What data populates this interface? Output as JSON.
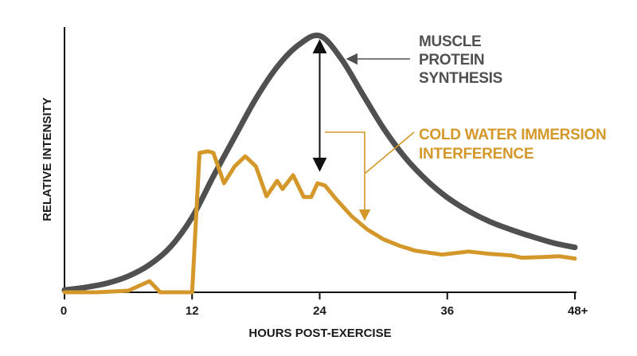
{
  "chart_data": {
    "type": "line",
    "title": "",
    "xlabel": "HOURS POST-EXERCISE",
    "ylabel": "RELATIVE INTENSITY",
    "xlim": [
      0,
      48
    ],
    "ylim": [
      0,
      100
    ],
    "x_ticks": [
      {
        "value": 0,
        "label": "0"
      },
      {
        "value": 12,
        "label": "12"
      },
      {
        "value": 24,
        "label": "24"
      },
      {
        "value": 36,
        "label": "36"
      },
      {
        "value": 48,
        "label": "48+"
      }
    ],
    "grid": false,
    "series": [
      {
        "name": "MUSCLE PROTEIN SYNTHESIS",
        "color": "#505050",
        "points": [
          [
            0,
            0.9
          ],
          [
            2,
            1.9
          ],
          [
            4,
            3.5
          ],
          [
            6,
            6.2
          ],
          [
            8,
            10.6
          ],
          [
            10,
            17.6
          ],
          [
            12,
            28.9
          ],
          [
            14,
            44.7
          ],
          [
            16,
            59.8
          ],
          [
            18,
            74.6
          ],
          [
            20,
            86.8
          ],
          [
            22,
            95.2
          ],
          [
            24,
            98.8
          ],
          [
            26,
            90.1
          ],
          [
            28,
            76.6
          ],
          [
            30,
            63.2
          ],
          [
            32,
            52.1
          ],
          [
            34,
            43.4
          ],
          [
            36,
            36.5
          ],
          [
            38,
            31.3
          ],
          [
            40,
            27.2
          ],
          [
            42,
            24.1
          ],
          [
            44,
            21.4
          ],
          [
            46,
            19.0
          ],
          [
            48,
            17.3
          ]
        ]
      },
      {
        "name": "COLD WATER IMMERSION INTERFERENCE",
        "color": "#d4982a",
        "points": [
          [
            0,
            0
          ],
          [
            3,
            0
          ],
          [
            6,
            0.6
          ],
          [
            8,
            4.3
          ],
          [
            9,
            0
          ],
          [
            12,
            0
          ],
          [
            12.7,
            53.7
          ],
          [
            13.5,
            54.3
          ],
          [
            14,
            53.7
          ],
          [
            15,
            42.0
          ],
          [
            16,
            48.5
          ],
          [
            17,
            52.4
          ],
          [
            18,
            48.5
          ],
          [
            19,
            37.0
          ],
          [
            20,
            42.9
          ],
          [
            20.5,
            39.8
          ],
          [
            21.5,
            45.1
          ],
          [
            22.5,
            36.7
          ],
          [
            23.2,
            36.7
          ],
          [
            23.8,
            42.0
          ],
          [
            24.5,
            41.1
          ],
          [
            25.5,
            36.1
          ],
          [
            27,
            29.3
          ],
          [
            28.5,
            24.1
          ],
          [
            30,
            20.4
          ],
          [
            31.5,
            17.9
          ],
          [
            33,
            16.0
          ],
          [
            35.5,
            14.5
          ],
          [
            38,
            15.7
          ],
          [
            40,
            14.8
          ],
          [
            42,
            14.2
          ],
          [
            43,
            13.3
          ],
          [
            45,
            13.6
          ],
          [
            46.5,
            13.9
          ],
          [
            48,
            13.0
          ]
        ]
      }
    ],
    "annotations": {
      "mps_label": [
        "MUSCLE",
        "PROTEIN",
        "SYNTHESIS"
      ],
      "cwi_label": [
        "COLD WATER IMMERSION",
        "INTERFERENCE"
      ],
      "double_arrow": {
        "x": 24,
        "y_top": 98.8,
        "y_bottom": 45.1
      }
    }
  }
}
